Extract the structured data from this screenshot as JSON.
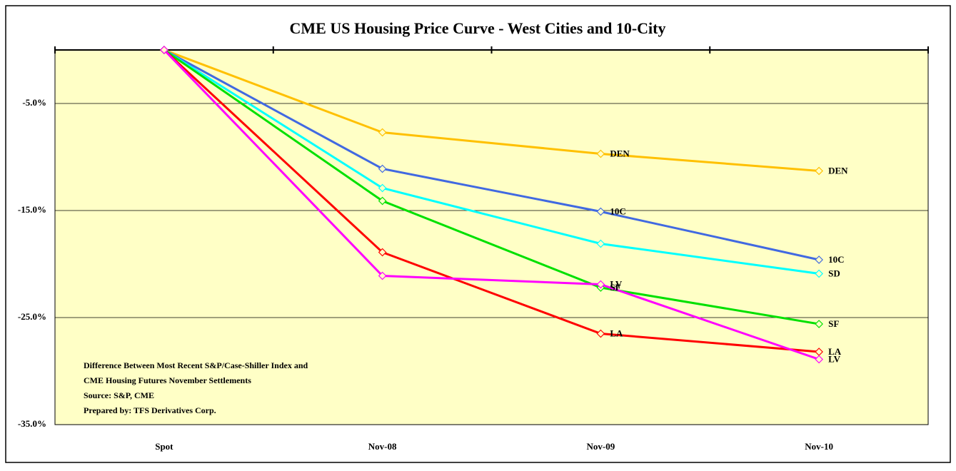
{
  "chart_data": {
    "type": "line",
    "title": "CME US Housing Price Curve - West Cities and 10-City",
    "categories": [
      "Spot",
      "Nov-08",
      "Nov-09",
      "Nov-10"
    ],
    "ylim": [
      -35,
      0
    ],
    "yticks": [
      {
        "value": -5,
        "label": "-5.0%"
      },
      {
        "value": -15,
        "label": "-15.0%"
      },
      {
        "value": -25,
        "label": "-25.0%"
      },
      {
        "value": -35,
        "label": "-35.0%"
      }
    ],
    "grid": true,
    "series": [
      {
        "name": "DEN",
        "color": "#ffc000",
        "values": [
          0,
          -7.7,
          -9.7,
          -11.3
        ],
        "label_indices": [
          2,
          3
        ]
      },
      {
        "name": "10C",
        "color": "#4169e1",
        "values": [
          0,
          -11.1,
          -15.1,
          -19.6
        ],
        "label_indices": [
          2,
          3
        ]
      },
      {
        "name": "SD",
        "color": "#00ffff",
        "values": [
          0,
          -12.9,
          -18.1,
          -20.9
        ],
        "label_indices": [
          3
        ]
      },
      {
        "name": "SF",
        "color": "#00e000",
        "values": [
          0,
          -14.1,
          -22.2,
          -25.6
        ],
        "label_indices": [
          2,
          3
        ]
      },
      {
        "name": "LA",
        "color": "#ff0000",
        "values": [
          0,
          -18.9,
          -26.5,
          -28.2
        ],
        "label_indices": [
          2,
          3
        ]
      },
      {
        "name": "LV",
        "color": "#ff00ff",
        "values": [
          0,
          -21.1,
          -21.9,
          -28.9
        ],
        "label_indices": [
          2,
          3
        ]
      }
    ],
    "annotations": [
      "Difference Between Most Recent S&P/Case-Shiller Index and",
      "CME Housing Futures November Settlements",
      "Source: S&P, CME",
      "Prepared by: TFS Derivatives Corp."
    ]
  }
}
